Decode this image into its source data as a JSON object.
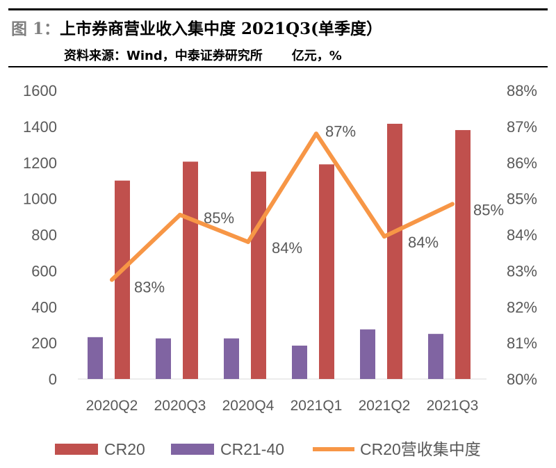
{
  "header": {
    "title_prefix": "图 1：",
    "title_main": "上市券商营业收入集中度 2021Q3(单季度）",
    "source": "资料来源：Wind，中泰证券研究所",
    "unit": "亿元，%"
  },
  "colors": {
    "cr20": "#c0504d",
    "cr21_40": "#8064a2",
    "concentration": "#f79646",
    "text": "#595959"
  },
  "chart_data": {
    "type": "bar",
    "title": "上市券商营业收入集中度 2021Q3(单季度）",
    "categories": [
      "2020Q2",
      "2020Q3",
      "2020Q4",
      "2021Q1",
      "2021Q2",
      "2021Q3"
    ],
    "series": [
      {
        "name": "CR20",
        "kind": "bar",
        "axis": "left",
        "values": [
          1100,
          1205,
          1150,
          1190,
          1415,
          1380
        ]
      },
      {
        "name": "CR21-40",
        "kind": "bar",
        "axis": "left",
        "values": [
          232,
          225,
          225,
          185,
          275,
          250
        ]
      },
      {
        "name": "CR20营收集中度",
        "kind": "line",
        "axis": "right",
        "values": [
          82.75,
          84.55,
          83.8,
          86.8,
          83.95,
          84.85
        ],
        "labels": [
          "83%",
          "85%",
          "84%",
          "87%",
          "84%",
          "85%"
        ]
      }
    ],
    "y_left": {
      "min": 0,
      "max": 1600,
      "step": 200,
      "ticks": [
        "0",
        "200",
        "400",
        "600",
        "800",
        "1000",
        "1200",
        "1400",
        "1600"
      ]
    },
    "y_right": {
      "min": 80,
      "max": 88,
      "step": 1,
      "ticks": [
        "80%",
        "81%",
        "82%",
        "83%",
        "84%",
        "85%",
        "86%",
        "87%",
        "88%"
      ]
    },
    "legend": {
      "position": "bottom",
      "items": [
        "CR20",
        "CR21-40",
        "CR20营收集中度"
      ]
    }
  }
}
